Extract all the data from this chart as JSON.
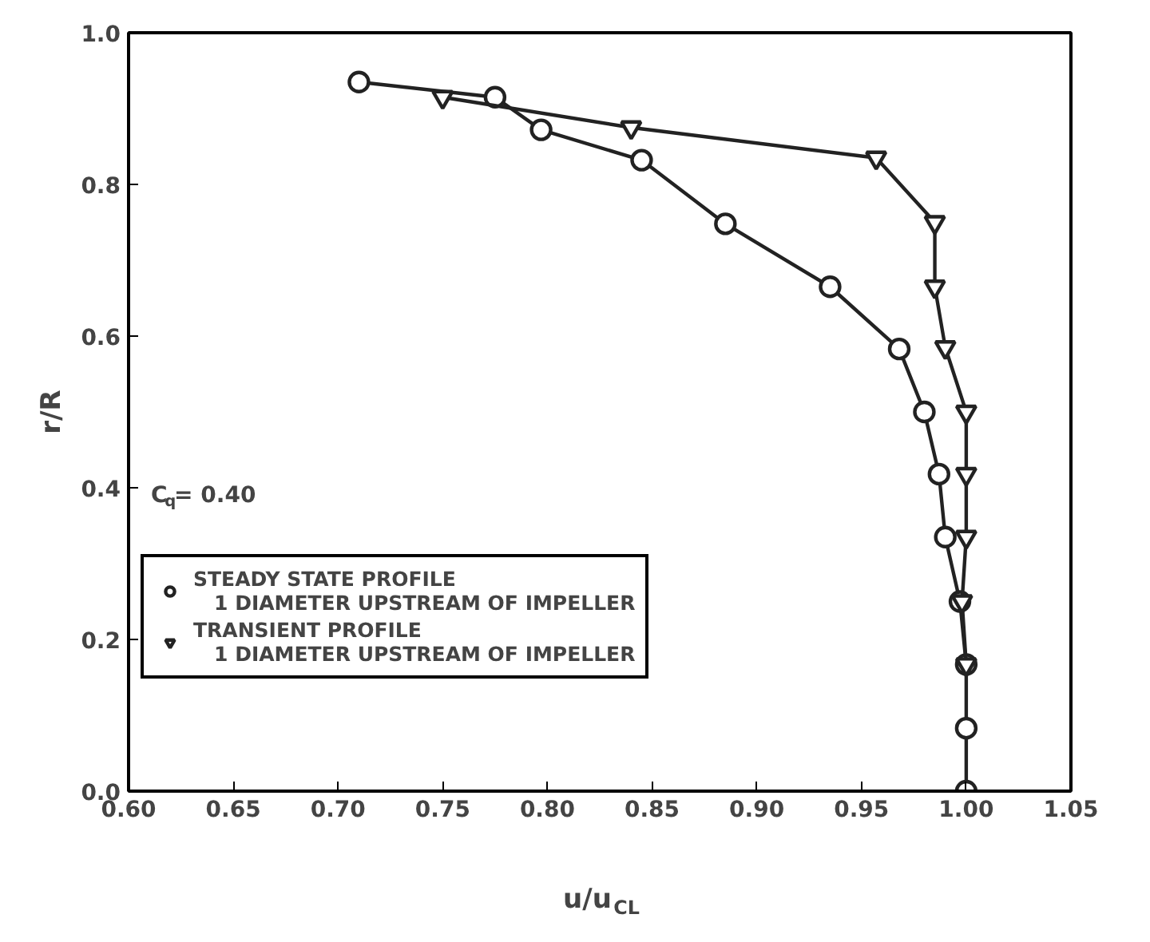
{
  "chart_data": {
    "type": "line",
    "xlabel": "u/u$_{CL}$",
    "ylabel": "r/R",
    "annotations": [
      {
        "text": "C$_{q}$= 0.40"
      }
    ],
    "xlim": [
      0.6,
      1.05
    ],
    "ylim": [
      0.0,
      1.0
    ],
    "xticks": [
      {
        "value": 0.6,
        "label": "0.60"
      },
      {
        "value": 0.65,
        "label": "0.65"
      },
      {
        "value": 0.7,
        "label": "0.70"
      },
      {
        "value": 0.75,
        "label": "0.75"
      },
      {
        "value": 0.8,
        "label": "0.80"
      },
      {
        "value": 0.85,
        "label": "0.85"
      },
      {
        "value": 0.9,
        "label": "0.90"
      },
      {
        "value": 0.95,
        "label": "0.95"
      },
      {
        "value": 1.0,
        "label": "1.00"
      },
      {
        "value": 1.05,
        "label": "1.05"
      }
    ],
    "yticks": [
      {
        "value": 0.0,
        "label": "0.0"
      },
      {
        "value": 0.2,
        "label": "0.2"
      },
      {
        "value": 0.4,
        "label": "0.4"
      },
      {
        "value": 0.6,
        "label": "0.6"
      },
      {
        "value": 0.8,
        "label": "0.8"
      },
      {
        "value": 1.0,
        "label": "1.0"
      }
    ],
    "grid": false,
    "legend": "left",
    "line_style": "solid",
    "series": [
      {
        "name": "STEADY STATE PROFILE\n   1 DIAMETER UPSTREAM OF IMPELLER",
        "color": "#222222",
        "marker": "circle",
        "x": [
          0.71,
          0.775,
          0.797,
          0.845,
          0.885,
          0.935,
          0.968,
          0.98,
          0.987,
          0.99,
          0.997,
          1.0,
          1.0,
          1.0
        ],
        "values": [
          0.935,
          0.915,
          0.872,
          0.832,
          0.748,
          0.665,
          0.583,
          0.5,
          0.418,
          0.335,
          0.25,
          0.167,
          0.083,
          0.0
        ]
      },
      {
        "name": "TRANSIENT PROFILE\n   1 DIAMETER UPSTREAM OF IMPELLER",
        "color": "#222222",
        "marker": "triangle",
        "x": [
          0.75,
          0.84,
          0.957,
          0.985,
          0.985,
          0.99,
          1.0,
          1.0,
          1.0,
          0.998,
          1.0
        ],
        "values": [
          0.915,
          0.875,
          0.835,
          0.75,
          0.665,
          0.585,
          0.5,
          0.418,
          0.335,
          0.25,
          0.167
        ]
      }
    ]
  }
}
